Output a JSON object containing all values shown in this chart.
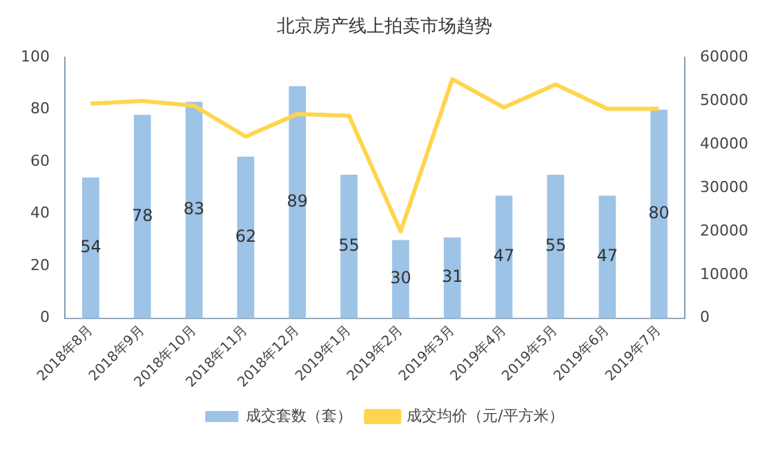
{
  "chart_data": {
    "type": "bar",
    "title": "北京房产线上拍卖市场趋势",
    "categories": [
      "2018年8月",
      "2018年9月",
      "2018年10月",
      "2018年11月",
      "2018年12月",
      "2019年1月",
      "2019年2月",
      "2019年3月",
      "2019年4月",
      "2019年5月",
      "2019年6月",
      "2019年7月"
    ],
    "series": [
      {
        "name": "成交套数（套）",
        "color": "#9dc3e6",
        "values": [
          54,
          78,
          83,
          62,
          89,
          55,
          30,
          31,
          47,
          55,
          47,
          80
        ],
        "value_labels": [
          "54",
          "78",
          "83",
          "62",
          "89",
          "55",
          "30",
          "31",
          "47",
          "55",
          "47",
          "80"
        ]
      },
      {
        "name": "成交均价（元/平方米）",
        "type": "line",
        "axis": "y2",
        "color": "#ffd54f",
        "values": [
          49400,
          50000,
          48900,
          41800,
          47000,
          46600,
          20000,
          55000,
          48500,
          53800,
          48200,
          48200
        ]
      }
    ],
    "ylim": [
      0,
      100
    ],
    "yticks": [
      0,
      20,
      40,
      60,
      80,
      100
    ],
    "y2lim": [
      0,
      60000
    ],
    "y2ticks": [
      0,
      10000,
      20000,
      30000,
      40000,
      50000,
      60000
    ],
    "legend": "bottom",
    "grid": false,
    "marker": "none"
  }
}
